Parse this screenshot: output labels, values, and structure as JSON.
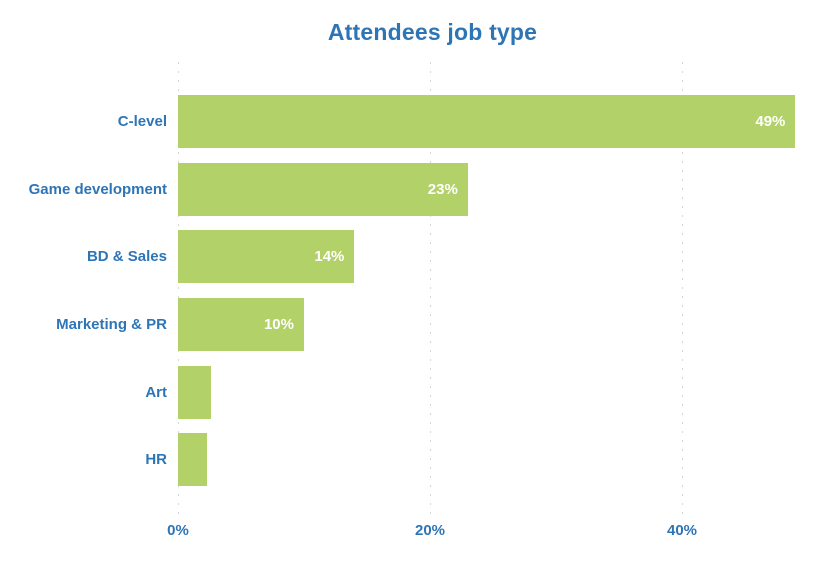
{
  "chart_data": {
    "type": "bar",
    "orientation": "horizontal",
    "title": "Attendees job type",
    "categories": [
      "C-level",
      "Game development",
      "BD & Sales",
      "Marketing & PR",
      "Art",
      "HR"
    ],
    "values": [
      49,
      23,
      14,
      10,
      2.6,
      2.3
    ],
    "bar_labels": [
      "49%",
      "23%",
      "14%",
      "10%",
      "",
      ""
    ],
    "xlabel": "",
    "ylabel": "",
    "xlim": [
      0,
      50
    ],
    "x_ticks": [
      {
        "value": 0,
        "label": "0%"
      },
      {
        "value": 20,
        "label": "20%"
      },
      {
        "value": 40,
        "label": "40%"
      }
    ],
    "grid": "vertical-dotted",
    "legend": "none",
    "colors": {
      "bar": "#b3d169",
      "title_text": "#2e75b6",
      "category_text": "#2e75b6",
      "tick_text": "#2e75b6",
      "bar_label_text": "#ffffff",
      "gridline": "#d2d7da",
      "background": "#ffffff"
    }
  }
}
